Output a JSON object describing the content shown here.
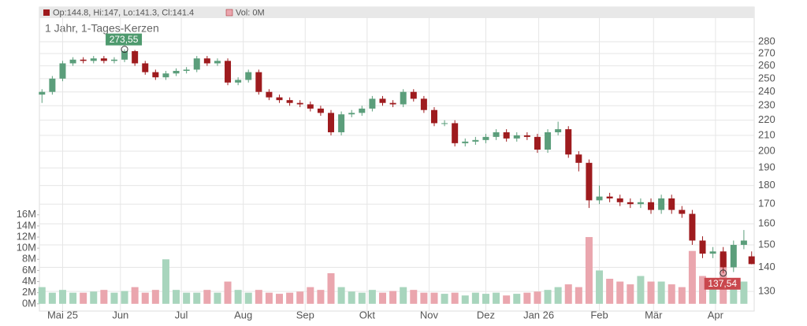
{
  "chart_data": {
    "type": "candlestick",
    "subtitle": "1 Jahr, 1-Tages-Kerzen",
    "legend": {
      "ohlc": "Op:144.8, Hi:147, Lo:141.3, Cl:141.4",
      "volume": "Vol: 0M"
    },
    "log_scale": true,
    "grid": true,
    "up_color": "#5b9e7b",
    "down_color": "#9e1b1e",
    "up_volume_color": "#a8d5bd",
    "down_volume_color": "#eaa6ae",
    "x": [
      0,
      4,
      8,
      12,
      16,
      20,
      24,
      28,
      32,
      36,
      40,
      44,
      48,
      52,
      56,
      60,
      64,
      68,
      72,
      76,
      80,
      84,
      88,
      92,
      96,
      100,
      104,
      108,
      112,
      116,
      120,
      124,
      128,
      132,
      136,
      140,
      144,
      148,
      152,
      156,
      160,
      164,
      168,
      172,
      176,
      180,
      184,
      188,
      192,
      196,
      200,
      204,
      208,
      212,
      216,
      220,
      224,
      228,
      232,
      236,
      240,
      244,
      248,
      252,
      256,
      260,
      264,
      268,
      272,
      275
    ],
    "open": [
      238,
      240,
      250,
      262,
      265,
      264,
      266,
      264,
      265,
      272,
      262,
      255,
      251,
      254,
      256,
      257,
      266,
      262,
      264,
      247,
      249,
      255,
      240,
      236,
      234,
      232,
      231,
      228,
      225,
      212,
      224,
      225,
      228,
      235,
      232,
      231,
      240,
      235,
      227,
      218,
      218,
      205,
      206,
      207,
      209,
      212,
      208,
      210,
      209,
      201,
      212,
      214,
      198,
      193,
      172,
      174,
      173,
      171,
      170,
      171,
      167,
      173,
      167,
      165,
      152,
      146,
      147,
      140,
      150,
      144.8
    ],
    "high": [
      242,
      252,
      264,
      267,
      267,
      268,
      268,
      267,
      273.55,
      273,
      264,
      257,
      256,
      258,
      259,
      268,
      268,
      266,
      266,
      251,
      257,
      257,
      242,
      238,
      236,
      234,
      233,
      230,
      227,
      226,
      227,
      230,
      237,
      237,
      234,
      242,
      242,
      237,
      229,
      220,
      220,
      208,
      209,
      211,
      214,
      214,
      212,
      212,
      211,
      214,
      219,
      216,
      200,
      195,
      180,
      176,
      175,
      173,
      173,
      173,
      175,
      175,
      169,
      167,
      154,
      149,
      149,
      152,
      157,
      147
    ],
    "low": [
      232,
      238,
      248,
      260,
      262,
      262,
      262,
      262,
      263,
      260,
      253,
      249,
      249,
      252,
      254,
      255,
      260,
      260,
      245,
      245,
      247,
      238,
      234,
      232,
      230,
      229,
      226,
      223,
      210,
      210,
      222,
      223,
      226,
      230,
      229,
      229,
      233,
      225,
      216,
      216,
      203,
      203,
      204,
      205,
      207,
      206,
      206,
      207,
      199,
      199,
      210,
      196,
      188,
      168,
      170,
      171,
      169,
      168,
      168,
      165,
      165,
      165,
      163,
      150,
      144,
      144,
      137.54,
      138,
      148,
      141.3
    ],
    "close": [
      240,
      250,
      262,
      265,
      264,
      266,
      264,
      265,
      272,
      262,
      255,
      251,
      254,
      256,
      257,
      266,
      262,
      264,
      247,
      249,
      255,
      240,
      236,
      234,
      232,
      231,
      228,
      225,
      212,
      224,
      225,
      228,
      235,
      232,
      231,
      240,
      235,
      227,
      218,
      218,
      205,
      206,
      207,
      209,
      212,
      208,
      210,
      209,
      201,
      212,
      214,
      198,
      193,
      172,
      174,
      173,
      171,
      170,
      171,
      167,
      173,
      167,
      165,
      152,
      146,
      147,
      140,
      150,
      152,
      141.4
    ],
    "volume": [
      3,
      2,
      2.5,
      2,
      2,
      2.2,
      2.5,
      2,
      2.3,
      3,
      2,
      2.5,
      8,
      2.5,
      2,
      2,
      2.5,
      2,
      4,
      2.5,
      2,
      2.5,
      2,
      1.8,
      2,
      2.2,
      3,
      2.5,
      5.5,
      3,
      2.2,
      2,
      2.5,
      2,
      2.3,
      3,
      2.5,
      2,
      2,
      1.8,
      2,
      1.5,
      2,
      1.8,
      2,
      1.5,
      1.8,
      2,
      2.2,
      2.5,
      3,
      3.5,
      3,
      12,
      6,
      4.5,
      4,
      3.5,
      5,
      4,
      4,
      3.5,
      3,
      9.5,
      5,
      4,
      9,
      3.5,
      4,
      0
    ],
    "xlim": [
      -1,
      276
    ],
    "xticks": [
      {
        "value": 8,
        "label": "Mai 25"
      },
      {
        "value": 30.4,
        "label": "Jun"
      },
      {
        "value": 54,
        "label": "Jul"
      },
      {
        "value": 78,
        "label": "Aug"
      },
      {
        "value": 102,
        "label": "Sep"
      },
      {
        "value": 126,
        "label": "Okt"
      },
      {
        "value": 150,
        "label": "Nov"
      },
      {
        "value": 172,
        "label": "Dez"
      },
      {
        "value": 192.5,
        "label": "Jan 26"
      },
      {
        "value": 216,
        "label": "Feb"
      },
      {
        "value": 237,
        "label": "Mär"
      },
      {
        "value": 261,
        "label": "Apr"
      }
    ],
    "ylim": [
      122.4,
      301.8
    ],
    "yticks": [
      130,
      140,
      150,
      160,
      170,
      180,
      190,
      200,
      210,
      220,
      230,
      240,
      250,
      260,
      270,
      280
    ],
    "y2lim": [
      -1.3,
      51.5
    ],
    "y2ticks": [
      {
        "value": 0,
        "label": "0M"
      },
      {
        "value": 2,
        "label": "2M"
      },
      {
        "value": 4,
        "label": "4M"
      },
      {
        "value": 6,
        "label": "6M"
      },
      {
        "value": 8,
        "label": "8M"
      },
      {
        "value": 10,
        "label": "10M"
      },
      {
        "value": 12,
        "label": "12M"
      },
      {
        "value": 14,
        "label": "14M"
      },
      {
        "value": 16,
        "label": "16M"
      }
    ],
    "annotations": [
      {
        "x": 32,
        "value": 273.55,
        "label": "273,55",
        "color": "#4e9a6e",
        "position": "above"
      },
      {
        "x": 264,
        "value": 137.54,
        "label": "137,54",
        "color": "#c9474d",
        "position": "below"
      }
    ]
  }
}
